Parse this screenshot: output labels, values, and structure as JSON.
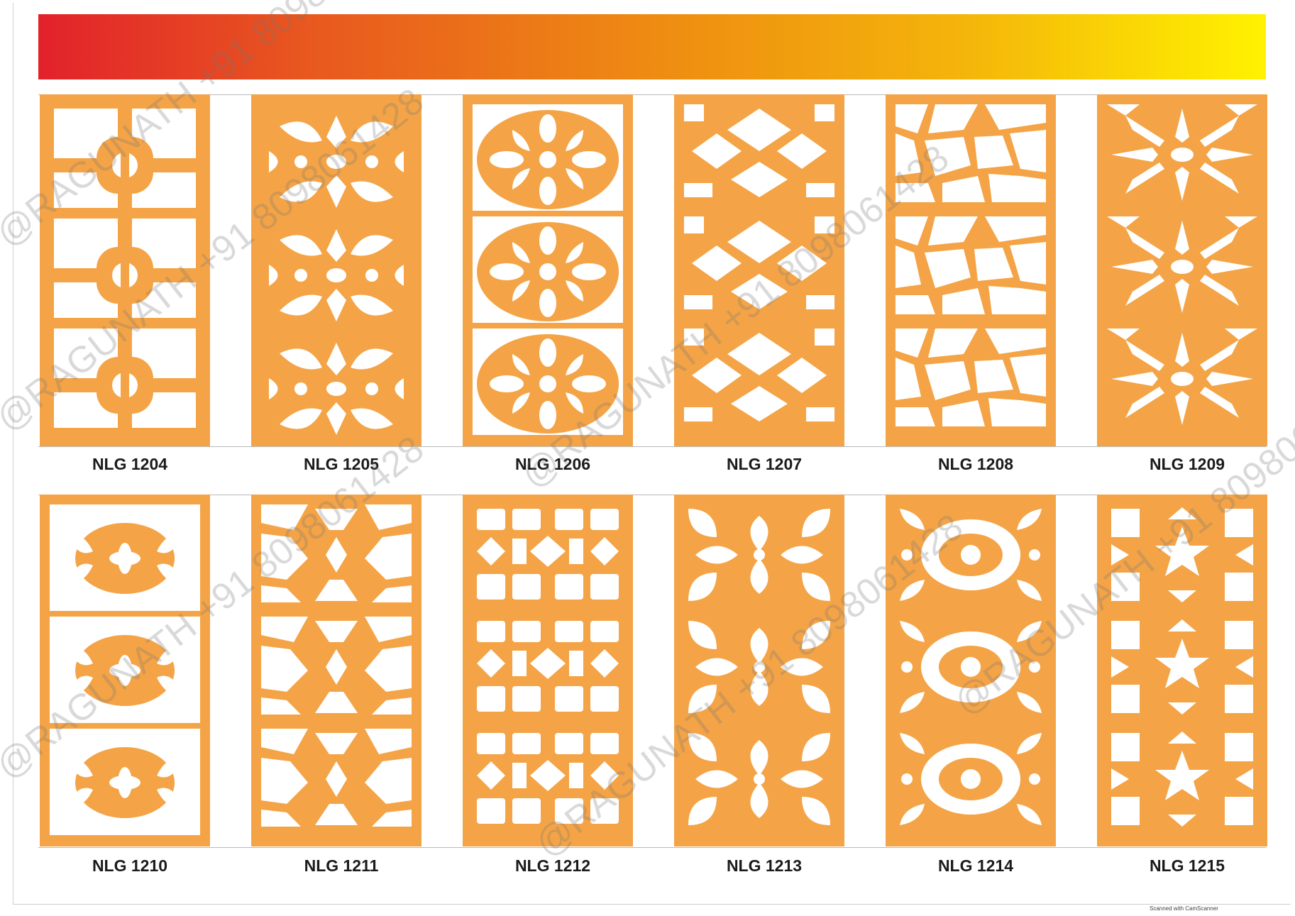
{
  "colors": {
    "panel": "#f4a446",
    "cutout": "#ffffff",
    "gradient_start": "#e2222b",
    "gradient_end": "#fff200"
  },
  "rows": [
    {
      "panels": [
        {
          "label": "NLG 1204",
          "pattern": "quatrefoil-cross"
        },
        {
          "label": "NLG 1205",
          "pattern": "floral-damask"
        },
        {
          "label": "NLG 1206",
          "pattern": "circle-medallion"
        },
        {
          "label": "NLG 1207",
          "pattern": "diamond-lattice"
        },
        {
          "label": "NLG 1208",
          "pattern": "cracked-web"
        },
        {
          "label": "NLG 1209",
          "pattern": "star-burst"
        }
      ]
    },
    {
      "panels": [
        {
          "label": "NLG 1210",
          "pattern": "ring-flower"
        },
        {
          "label": "NLG 1211",
          "pattern": "geometric-star"
        },
        {
          "label": "NLG 1212",
          "pattern": "grid-lattice"
        },
        {
          "label": "NLG 1213",
          "pattern": "scroll-floral"
        },
        {
          "label": "NLG 1214",
          "pattern": "lace-medallion"
        },
        {
          "label": "NLG 1215",
          "pattern": "moroccan-star"
        }
      ]
    }
  ],
  "watermarks": [
    "@RAGUNATH +91 8098061428"
  ],
  "footer": {
    "scanner_text": "Scanned with CamScanner"
  }
}
